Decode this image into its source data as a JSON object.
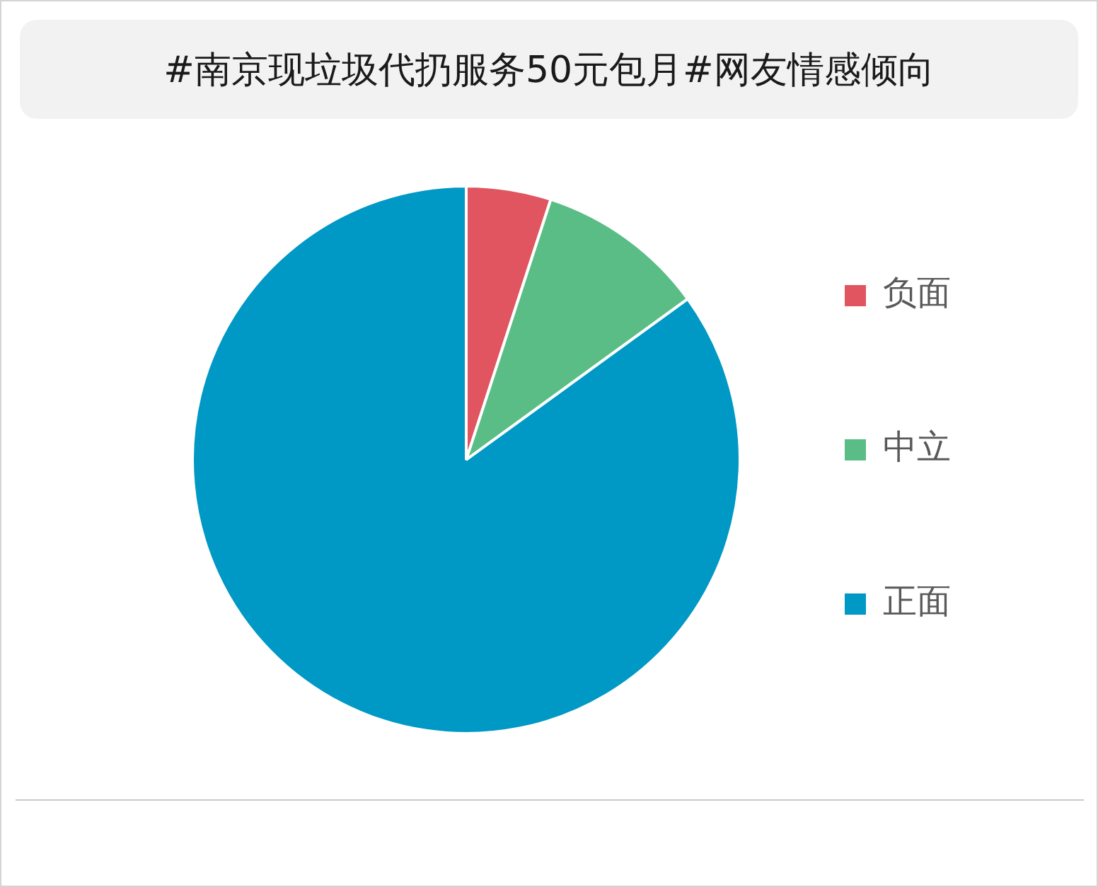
{
  "chart_data": {
    "type": "pie",
    "title": "#南京现垃圾代扔服务50元包月#网友情感倾向",
    "categories": [
      "负面",
      "中立",
      "正面"
    ],
    "values": [
      5,
      10,
      85
    ],
    "colors": [
      "#e0555f",
      "#5abd86",
      "#0098c5"
    ],
    "legend": "right"
  }
}
